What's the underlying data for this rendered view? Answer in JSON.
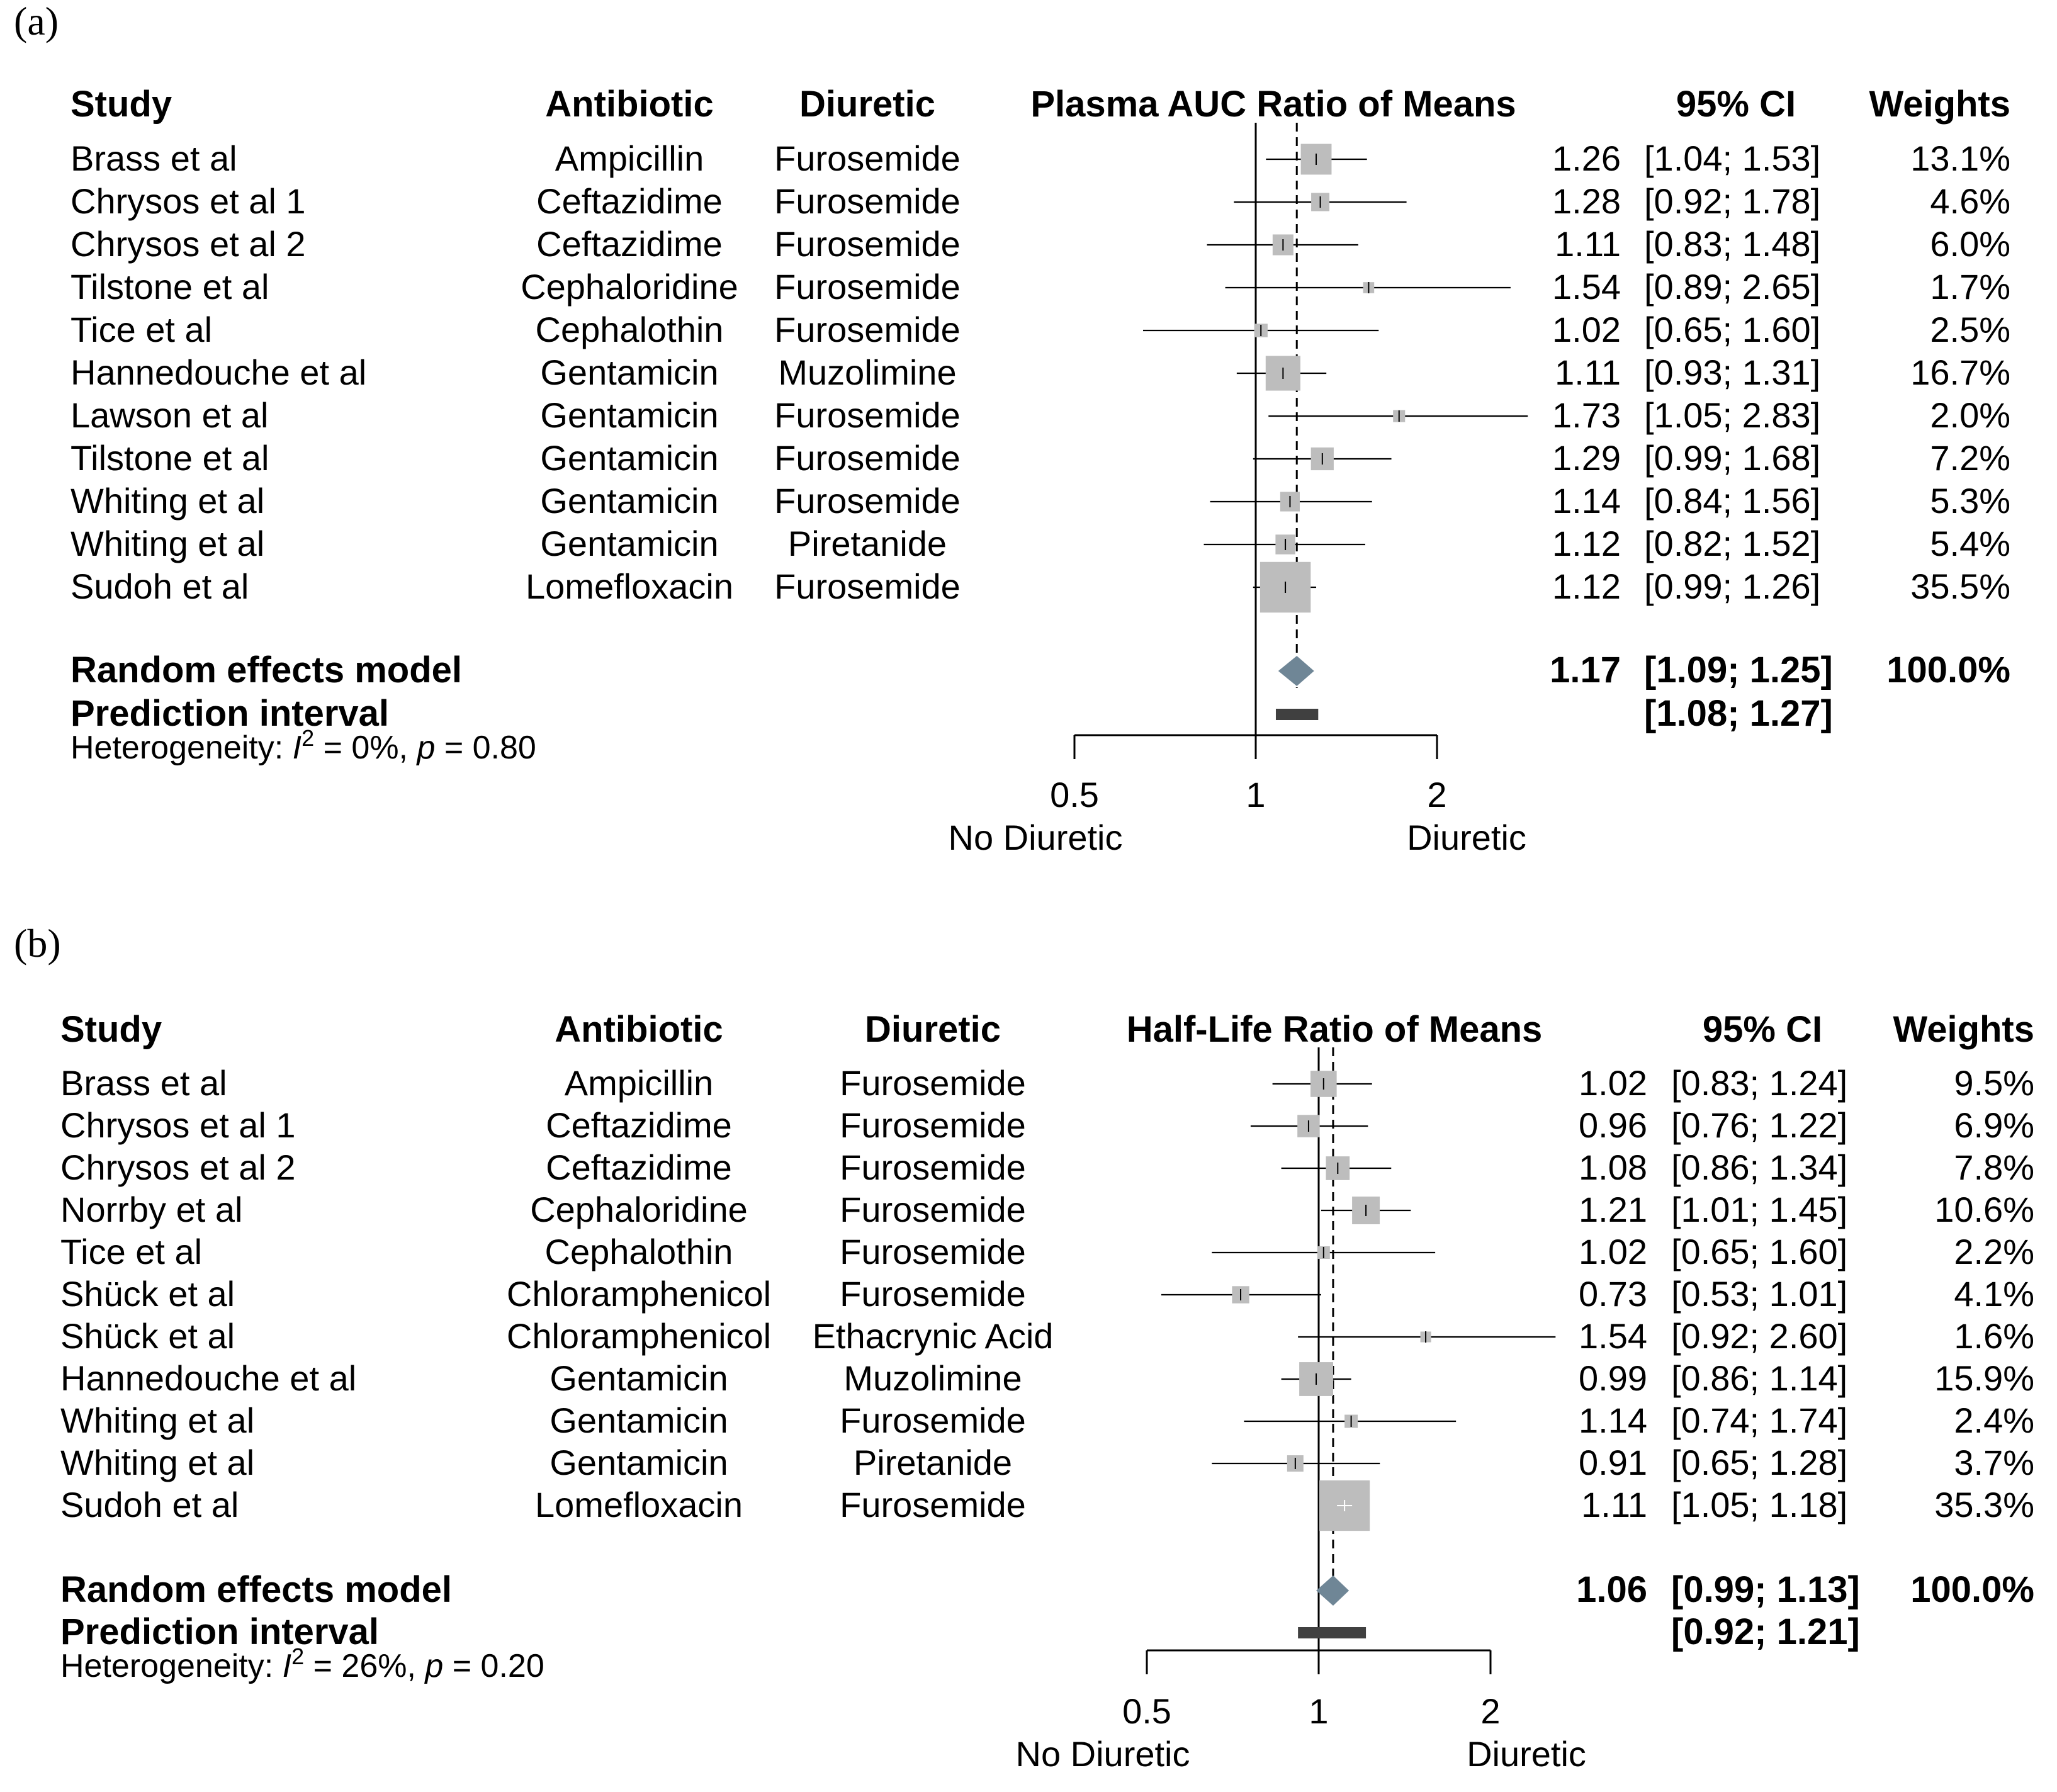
{
  "panels": [
    {
      "label": "(a)",
      "headers": {
        "study": "Study",
        "antibiotic": "Antibiotic",
        "diuretic": "Diuretic",
        "plot": "Plasma AUC Ratio of Means",
        "ci": "95% CI",
        "weights": "Weights"
      },
      "studies": [
        {
          "study": "Brass et al",
          "antibiotic": "Ampicillin",
          "diuretic": "Furosemide",
          "estimate": 1.26,
          "lower": 1.04,
          "upper": 1.53,
          "est": "1.26",
          "ci": "[1.04; 1.53]",
          "weight_label": "13.1%",
          "weight": 13.1
        },
        {
          "study": "Chrysos et al 1",
          "antibiotic": "Ceftazidime",
          "diuretic": "Furosemide",
          "estimate": 1.28,
          "lower": 0.92,
          "upper": 1.78,
          "est": "1.28",
          "ci": "[0.92; 1.78]",
          "weight_label": "4.6%",
          "weight": 4.6
        },
        {
          "study": "Chrysos et al 2",
          "antibiotic": "Ceftazidime",
          "diuretic": "Furosemide",
          "estimate": 1.11,
          "lower": 0.83,
          "upper": 1.48,
          "est": "1.11",
          "ci": "[0.83; 1.48]",
          "weight_label": "6.0%",
          "weight": 6.0
        },
        {
          "study": "Tilstone et al",
          "antibiotic": "Cephaloridine",
          "diuretic": "Furosemide",
          "estimate": 1.54,
          "lower": 0.89,
          "upper": 2.65,
          "est": "1.54",
          "ci": "[0.89; 2.65]",
          "weight_label": "1.7%",
          "weight": 1.7
        },
        {
          "study": "Tice et al",
          "antibiotic": "Cephalothin",
          "diuretic": "Furosemide",
          "estimate": 1.02,
          "lower": 0.65,
          "upper": 1.6,
          "est": "1.02",
          "ci": "[0.65; 1.60]",
          "weight_label": "2.5%",
          "weight": 2.5
        },
        {
          "study": "Hannedouche et al",
          "antibiotic": "Gentamicin",
          "diuretic": "Muzolimine",
          "estimate": 1.11,
          "lower": 0.93,
          "upper": 1.31,
          "est": "1.11",
          "ci": "[0.93; 1.31]",
          "weight_label": "16.7%",
          "weight": 16.7
        },
        {
          "study": "Lawson et al",
          "antibiotic": "Gentamicin",
          "diuretic": "Furosemide",
          "estimate": 1.73,
          "lower": 1.05,
          "upper": 2.83,
          "est": "1.73",
          "ci": "[1.05; 2.83]",
          "weight_label": "2.0%",
          "weight": 2.0
        },
        {
          "study": "Tilstone et al",
          "antibiotic": "Gentamicin",
          "diuretic": "Furosemide",
          "estimate": 1.29,
          "lower": 0.99,
          "upper": 1.68,
          "est": "1.29",
          "ci": "[0.99; 1.68]",
          "weight_label": "7.2%",
          "weight": 7.2
        },
        {
          "study": "Whiting et al",
          "antibiotic": "Gentamicin",
          "diuretic": "Furosemide",
          "estimate": 1.14,
          "lower": 0.84,
          "upper": 1.56,
          "est": "1.14",
          "ci": "[0.84; 1.56]",
          "weight_label": "5.3%",
          "weight": 5.3
        },
        {
          "study": "Whiting et al",
          "antibiotic": "Gentamicin",
          "diuretic": "Piretanide",
          "estimate": 1.12,
          "lower": 0.82,
          "upper": 1.52,
          "est": "1.12",
          "ci": "[0.82; 1.52]",
          "weight_label": "5.4%",
          "weight": 5.4
        },
        {
          "study": "Sudoh et al",
          "antibiotic": "Lomefloxacin",
          "diuretic": "Furosemide",
          "estimate": 1.12,
          "lower": 0.99,
          "upper": 1.26,
          "est": "1.12",
          "ci": "[0.99; 1.26]",
          "weight_label": "35.5%",
          "weight": 35.5
        }
      ],
      "summary": {
        "label": "Random effects model",
        "estimate": 1.17,
        "lower": 1.09,
        "upper": 1.25,
        "est": "1.17",
        "ci": "[1.09; 1.25]",
        "weight_label": "100.0%"
      },
      "prediction": {
        "label": "Prediction interval",
        "lower": 1.08,
        "upper": 1.27,
        "ci": "[1.08; 1.27]"
      },
      "heterogeneity": {
        "prefix": "Heterogeneity: ",
        "i": "I",
        "sup": "2",
        "mid": " = 0%, ",
        "p": "p",
        "tail": " = 0.80"
      },
      "axis": {
        "ticks": [
          "0.5",
          "1",
          "2"
        ],
        "tick_values": [
          0.5,
          1,
          2
        ],
        "left_label": "No Diuretic",
        "right_label": "Diuretic"
      }
    },
    {
      "label": "(b)",
      "headers": {
        "study": "Study",
        "antibiotic": "Antibiotic",
        "diuretic": "Diuretic",
        "plot": "Half-Life Ratio of Means",
        "ci": "95% CI",
        "weights": "Weights"
      },
      "studies": [
        {
          "study": "Brass et al",
          "antibiotic": "Ampicillin",
          "diuretic": "Furosemide",
          "estimate": 1.02,
          "lower": 0.83,
          "upper": 1.24,
          "est": "1.02",
          "ci": "[0.83; 1.24]",
          "weight_label": "9.5%",
          "weight": 9.5
        },
        {
          "study": "Chrysos et al 1",
          "antibiotic": "Ceftazidime",
          "diuretic": "Furosemide",
          "estimate": 0.96,
          "lower": 0.76,
          "upper": 1.22,
          "est": "0.96",
          "ci": "[0.76; 1.22]",
          "weight_label": "6.9%",
          "weight": 6.9
        },
        {
          "study": "Chrysos et al 2",
          "antibiotic": "Ceftazidime",
          "diuretic": "Furosemide",
          "estimate": 1.08,
          "lower": 0.86,
          "upper": 1.34,
          "est": "1.08",
          "ci": "[0.86; 1.34]",
          "weight_label": "7.8%",
          "weight": 7.8
        },
        {
          "study": "Norrby et al",
          "antibiotic": "Cephaloridine",
          "diuretic": "Furosemide",
          "estimate": 1.21,
          "lower": 1.01,
          "upper": 1.45,
          "est": "1.21",
          "ci": "[1.01; 1.45]",
          "weight_label": "10.6%",
          "weight": 10.6
        },
        {
          "study": "Tice et al",
          "antibiotic": "Cephalothin",
          "diuretic": "Furosemide",
          "estimate": 1.02,
          "lower": 0.65,
          "upper": 1.6,
          "est": "1.02",
          "ci": "[0.65; 1.60]",
          "weight_label": "2.2%",
          "weight": 2.2
        },
        {
          "study": "Shück et al",
          "antibiotic": "Chloramphenicol",
          "diuretic": "Furosemide",
          "estimate": 0.73,
          "lower": 0.53,
          "upper": 1.01,
          "est": "0.73",
          "ci": "[0.53; 1.01]",
          "weight_label": "4.1%",
          "weight": 4.1
        },
        {
          "study": "Shück et al",
          "antibiotic": "Chloramphenicol",
          "diuretic": "Ethacrynic Acid",
          "estimate": 1.54,
          "lower": 0.92,
          "upper": 2.6,
          "est": "1.54",
          "ci": "[0.92; 2.60]",
          "weight_label": "1.6%",
          "weight": 1.6
        },
        {
          "study": "Hannedouche et al",
          "antibiotic": "Gentamicin",
          "diuretic": "Muzolimine",
          "estimate": 0.99,
          "lower": 0.86,
          "upper": 1.14,
          "est": "0.99",
          "ci": "[0.86; 1.14]",
          "weight_label": "15.9%",
          "weight": 15.9
        },
        {
          "study": "Whiting et al",
          "antibiotic": "Gentamicin",
          "diuretic": "Furosemide",
          "estimate": 1.14,
          "lower": 0.74,
          "upper": 1.74,
          "est": "1.14",
          "ci": "[0.74; 1.74]",
          "weight_label": "2.4%",
          "weight": 2.4
        },
        {
          "study": "Whiting et al",
          "antibiotic": "Gentamicin",
          "diuretic": "Piretanide",
          "estimate": 0.91,
          "lower": 0.65,
          "upper": 1.28,
          "est": "0.91",
          "ci": "[0.65; 1.28]",
          "weight_label": "3.7%",
          "weight": 3.7
        },
        {
          "study": "Sudoh et al",
          "antibiotic": "Lomefloxacin",
          "diuretic": "Furosemide",
          "estimate": 1.11,
          "lower": 1.05,
          "upper": 1.18,
          "est": "1.11",
          "ci": "[1.05; 1.18]",
          "weight_label": "35.3%",
          "weight": 35.3
        }
      ],
      "summary": {
        "label": "Random effects model",
        "estimate": 1.06,
        "lower": 0.99,
        "upper": 1.13,
        "est": "1.06",
        "ci": "[0.99; 1.13]",
        "weight_label": "100.0%"
      },
      "prediction": {
        "label": "Prediction interval",
        "lower": 0.92,
        "upper": 1.21,
        "ci": "[0.92; 1.21]"
      },
      "heterogeneity": {
        "prefix": "Heterogeneity: ",
        "i": "I",
        "sup": "2",
        "mid": " = 26%, ",
        "p": "p",
        "tail": " = 0.20"
      },
      "axis": {
        "ticks": [
          "0.5",
          "1",
          "2"
        ],
        "tick_values": [
          0.5,
          1,
          2
        ],
        "left_label": "No Diuretic",
        "right_label": "Diuretic"
      }
    }
  ],
  "colors": {
    "square": "#bdbdbd",
    "diamond": "#6f8696",
    "prediction": "#404040",
    "line": "#000000"
  },
  "chart_data": [
    {
      "type": "forest",
      "title": "Plasma AUC Ratio of Means",
      "scale": "log",
      "xlim": [
        0.5,
        2
      ],
      "ticks": [
        0.5,
        1,
        2
      ],
      "reference_line": 1,
      "summary_line": 1.17,
      "categories": [
        "Brass et al",
        "Chrysos et al 1",
        "Chrysos et al 2",
        "Tilstone et al",
        "Tice et al",
        "Hannedouche et al",
        "Lawson et al",
        "Tilstone et al",
        "Whiting et al",
        "Whiting et al",
        "Sudoh et al"
      ],
      "series": [
        {
          "name": "estimate",
          "values": [
            1.26,
            1.28,
            1.11,
            1.54,
            1.02,
            1.11,
            1.73,
            1.29,
            1.14,
            1.12,
            1.12
          ]
        },
        {
          "name": "lower",
          "values": [
            1.04,
            0.92,
            0.83,
            0.89,
            0.65,
            0.93,
            1.05,
            0.99,
            0.84,
            0.82,
            0.99
          ]
        },
        {
          "name": "upper",
          "values": [
            1.53,
            1.78,
            1.48,
            2.65,
            1.6,
            1.31,
            2.83,
            1.68,
            1.56,
            1.52,
            1.26
          ]
        },
        {
          "name": "weight",
          "values": [
            13.1,
            4.6,
            6.0,
            1.7,
            2.5,
            16.7,
            2.0,
            7.2,
            5.3,
            5.4,
            35.5
          ]
        }
      ],
      "pooled": {
        "estimate": 1.17,
        "lower": 1.09,
        "upper": 1.25
      },
      "prediction_interval": [
        1.08,
        1.27
      ],
      "xlabel_left": "No Diuretic",
      "xlabel_right": "Diuretic"
    },
    {
      "type": "forest",
      "title": "Half-Life Ratio of Means",
      "scale": "log",
      "xlim": [
        0.5,
        2
      ],
      "ticks": [
        0.5,
        1,
        2
      ],
      "reference_line": 1,
      "summary_line": 1.06,
      "categories": [
        "Brass et al",
        "Chrysos et al 1",
        "Chrysos et al 2",
        "Norrby et al",
        "Tice et al",
        "Shück et al",
        "Shück et al",
        "Hannedouche et al",
        "Whiting et al",
        "Whiting et al",
        "Sudoh et al"
      ],
      "series": [
        {
          "name": "estimate",
          "values": [
            1.02,
            0.96,
            1.08,
            1.21,
            1.02,
            0.73,
            1.54,
            0.99,
            1.14,
            0.91,
            1.11
          ]
        },
        {
          "name": "lower",
          "values": [
            0.83,
            0.76,
            0.86,
            1.01,
            0.65,
            0.53,
            0.92,
            0.86,
            0.74,
            0.65,
            1.05
          ]
        },
        {
          "name": "upper",
          "values": [
            1.24,
            1.22,
            1.34,
            1.45,
            1.6,
            1.01,
            2.6,
            1.14,
            1.74,
            1.28,
            1.18
          ]
        },
        {
          "name": "weight",
          "values": [
            9.5,
            6.9,
            7.8,
            10.6,
            2.2,
            4.1,
            1.6,
            15.9,
            2.4,
            3.7,
            35.3
          ]
        }
      ],
      "pooled": {
        "estimate": 1.06,
        "lower": 0.99,
        "upper": 1.13
      },
      "prediction_interval": [
        0.92,
        1.21
      ],
      "xlabel_left": "No Diuretic",
      "xlabel_right": "Diuretic"
    }
  ]
}
